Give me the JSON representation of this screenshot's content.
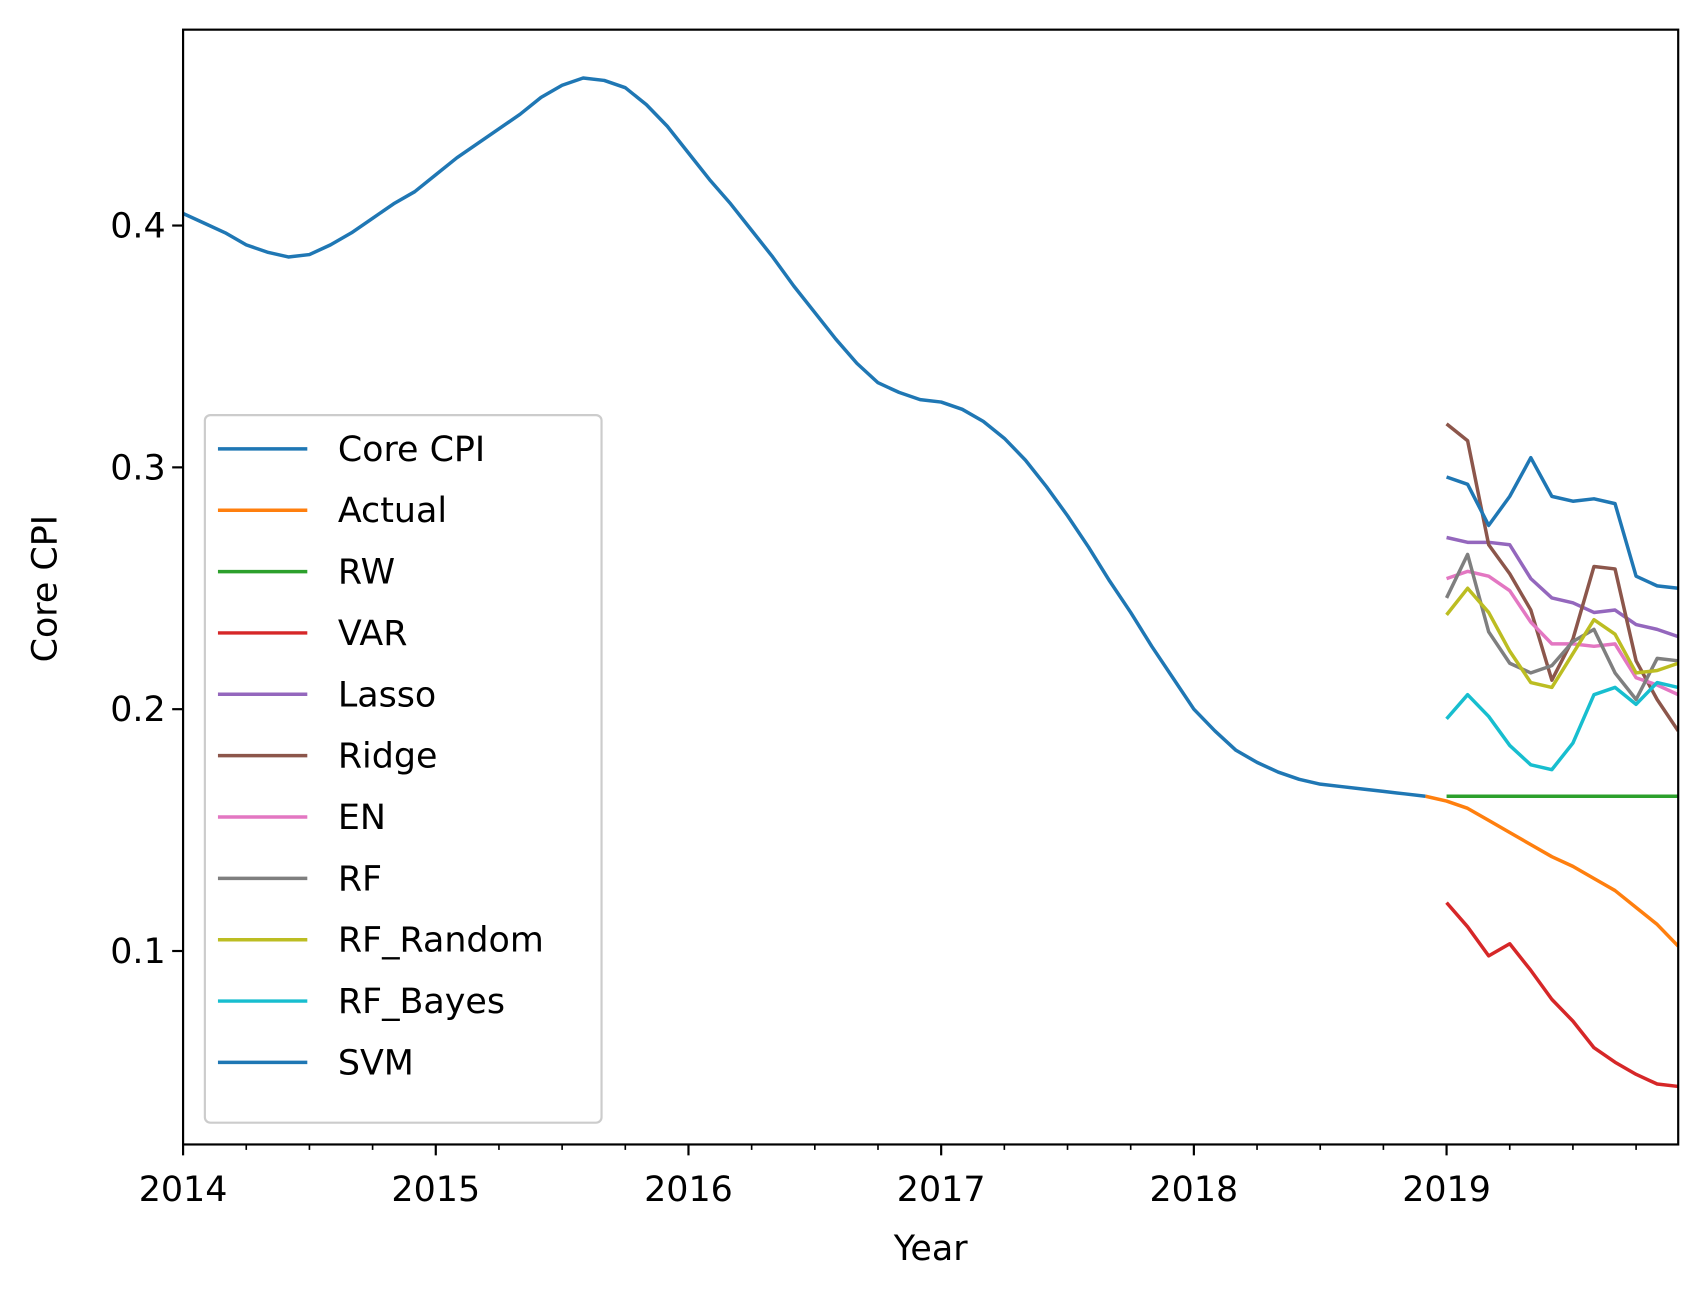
{
  "chart_data": {
    "type": "line",
    "x_label": "Year",
    "y_label": "Core CPI",
    "xlim": [
      "2014-01",
      "2019-12"
    ],
    "xticks": [
      {
        "value": "2014-01",
        "label": "2014"
      },
      {
        "value": "2015-01",
        "label": "2015"
      },
      {
        "value": "2016-01",
        "label": "2016"
      },
      {
        "value": "2017-01",
        "label": "2017"
      },
      {
        "value": "2018-01",
        "label": "2018"
      },
      {
        "value": "2019-01",
        "label": "2019"
      }
    ],
    "xminorticks": [
      "2014-04",
      "2014-07",
      "2014-10",
      "2015-04",
      "2015-07",
      "2015-10",
      "2016-04",
      "2016-07",
      "2016-10",
      "2017-04",
      "2017-07",
      "2017-10",
      "2018-04",
      "2018-07",
      "2018-10",
      "2019-04",
      "2019-07",
      "2019-10"
    ],
    "ylim": [
      0.02,
      0.481
    ],
    "yticks": [
      0.1,
      0.2,
      0.3,
      0.4
    ],
    "grid": false,
    "legend": "lower left",
    "series": [
      {
        "name": "Core CPI",
        "color": "#1f77b4",
        "x": [
          "2014-01",
          "2014-02",
          "2014-03",
          "2014-04",
          "2014-05",
          "2014-06",
          "2014-07",
          "2014-08",
          "2014-09",
          "2014-10",
          "2014-11",
          "2014-12",
          "2015-01",
          "2015-02",
          "2015-03",
          "2015-04",
          "2015-05",
          "2015-06",
          "2015-07",
          "2015-08",
          "2015-09",
          "2015-10",
          "2015-11",
          "2015-12",
          "2016-01",
          "2016-02",
          "2016-03",
          "2016-04",
          "2016-05",
          "2016-06",
          "2016-07",
          "2016-08",
          "2016-09",
          "2016-10",
          "2016-11",
          "2016-12",
          "2017-01",
          "2017-02",
          "2017-03",
          "2017-04",
          "2017-05",
          "2017-06",
          "2017-07",
          "2017-08",
          "2017-09",
          "2017-10",
          "2017-11",
          "2017-12",
          "2018-01",
          "2018-02",
          "2018-03",
          "2018-04",
          "2018-05",
          "2018-06",
          "2018-07",
          "2018-08",
          "2018-09",
          "2018-10",
          "2018-11",
          "2018-12"
        ],
        "values": [
          0.405,
          0.401,
          0.397,
          0.392,
          0.389,
          0.387,
          0.388,
          0.392,
          0.397,
          0.403,
          0.409,
          0.414,
          0.421,
          0.428,
          0.434,
          0.44,
          0.446,
          0.453,
          0.458,
          0.461,
          0.46,
          0.457,
          0.45,
          0.441,
          0.43,
          0.419,
          0.409,
          0.398,
          0.387,
          0.375,
          0.364,
          0.353,
          0.343,
          0.335,
          0.331,
          0.328,
          0.327,
          0.324,
          0.319,
          0.312,
          0.303,
          0.292,
          0.28,
          0.267,
          0.253,
          0.24,
          0.226,
          0.213,
          0.2,
          0.191,
          0.183,
          0.178,
          0.174,
          0.171,
          0.169,
          0.168,
          0.167,
          0.166,
          0.165,
          0.164
        ]
      },
      {
        "name": "Actual",
        "color": "#ff7f0e",
        "x": [
          "2018-12",
          "2019-01",
          "2019-02",
          "2019-03",
          "2019-04",
          "2019-05",
          "2019-06",
          "2019-07",
          "2019-08",
          "2019-09",
          "2019-10",
          "2019-11",
          "2019-12"
        ],
        "values": [
          0.164,
          0.162,
          0.159,
          0.154,
          0.149,
          0.144,
          0.139,
          0.135,
          0.13,
          0.125,
          0.118,
          0.111,
          0.102
        ]
      },
      {
        "name": "RW",
        "color": "#2ca02c",
        "x": [
          "2019-01",
          "2019-02",
          "2019-03",
          "2019-04",
          "2019-05",
          "2019-06",
          "2019-07",
          "2019-08",
          "2019-09",
          "2019-10",
          "2019-11",
          "2019-12"
        ],
        "values": [
          0.164,
          0.164,
          0.164,
          0.164,
          0.164,
          0.164,
          0.164,
          0.164,
          0.164,
          0.164,
          0.164,
          0.164
        ]
      },
      {
        "name": "VAR",
        "color": "#d62728",
        "x": [
          "2019-01",
          "2019-02",
          "2019-03",
          "2019-04",
          "2019-05",
          "2019-06",
          "2019-07",
          "2019-08",
          "2019-09",
          "2019-10",
          "2019-11",
          "2019-12"
        ],
        "values": [
          0.12,
          0.11,
          0.098,
          0.103,
          0.092,
          0.08,
          0.071,
          0.06,
          0.054,
          0.049,
          0.045,
          0.044
        ]
      },
      {
        "name": "Lasso",
        "color": "#9467bd",
        "x": [
          "2019-01",
          "2019-02",
          "2019-03",
          "2019-04",
          "2019-05",
          "2019-06",
          "2019-07",
          "2019-08",
          "2019-09",
          "2019-10",
          "2019-11",
          "2019-12"
        ],
        "values": [
          0.271,
          0.269,
          0.269,
          0.268,
          0.254,
          0.246,
          0.244,
          0.24,
          0.241,
          0.235,
          0.233,
          0.23
        ]
      },
      {
        "name": "Ridge",
        "color": "#8c564b",
        "x": [
          "2019-01",
          "2019-02",
          "2019-03",
          "2019-04",
          "2019-05",
          "2019-06",
          "2019-07",
          "2019-08",
          "2019-09",
          "2019-10",
          "2019-11",
          "2019-12"
        ],
        "values": [
          0.318,
          0.311,
          0.268,
          0.256,
          0.241,
          0.212,
          0.229,
          0.259,
          0.258,
          0.22,
          0.204,
          0.191
        ]
      },
      {
        "name": "EN",
        "color": "#e377c2",
        "x": [
          "2019-01",
          "2019-02",
          "2019-03",
          "2019-04",
          "2019-05",
          "2019-06",
          "2019-07",
          "2019-08",
          "2019-09",
          "2019-10",
          "2019-11",
          "2019-12"
        ],
        "values": [
          0.254,
          0.257,
          0.255,
          0.249,
          0.236,
          0.227,
          0.227,
          0.226,
          0.227,
          0.213,
          0.21,
          0.206
        ]
      },
      {
        "name": "RF",
        "color": "#7f7f7f",
        "x": [
          "2019-01",
          "2019-02",
          "2019-03",
          "2019-04",
          "2019-05",
          "2019-06",
          "2019-07",
          "2019-08",
          "2019-09",
          "2019-10",
          "2019-11",
          "2019-12"
        ],
        "values": [
          0.246,
          0.264,
          0.232,
          0.219,
          0.215,
          0.218,
          0.228,
          0.233,
          0.215,
          0.204,
          0.221,
          0.22
        ]
      },
      {
        "name": "RF_Random",
        "color": "#bcbd22",
        "x": [
          "2019-01",
          "2019-02",
          "2019-03",
          "2019-04",
          "2019-05",
          "2019-06",
          "2019-07",
          "2019-08",
          "2019-09",
          "2019-10",
          "2019-11",
          "2019-12"
        ],
        "values": [
          0.239,
          0.25,
          0.24,
          0.224,
          0.211,
          0.209,
          0.223,
          0.237,
          0.231,
          0.215,
          0.216,
          0.219
        ]
      },
      {
        "name": "RF_Bayes",
        "color": "#17becf",
        "x": [
          "2019-01",
          "2019-02",
          "2019-03",
          "2019-04",
          "2019-05",
          "2019-06",
          "2019-07",
          "2019-08",
          "2019-09",
          "2019-10",
          "2019-11",
          "2019-12"
        ],
        "values": [
          0.196,
          0.206,
          0.197,
          0.185,
          0.177,
          0.175,
          0.186,
          0.206,
          0.209,
          0.202,
          0.211,
          0.209
        ]
      },
      {
        "name": "SVM",
        "color": "#1f77b4",
        "x": [
          "2019-01",
          "2019-02",
          "2019-03",
          "2019-04",
          "2019-05",
          "2019-06",
          "2019-07",
          "2019-08",
          "2019-09",
          "2019-10",
          "2019-11",
          "2019-12"
        ],
        "values": [
          0.296,
          0.293,
          0.276,
          0.288,
          0.304,
          0.288,
          0.286,
          0.287,
          0.285,
          0.255,
          0.251,
          0.25
        ]
      }
    ]
  }
}
